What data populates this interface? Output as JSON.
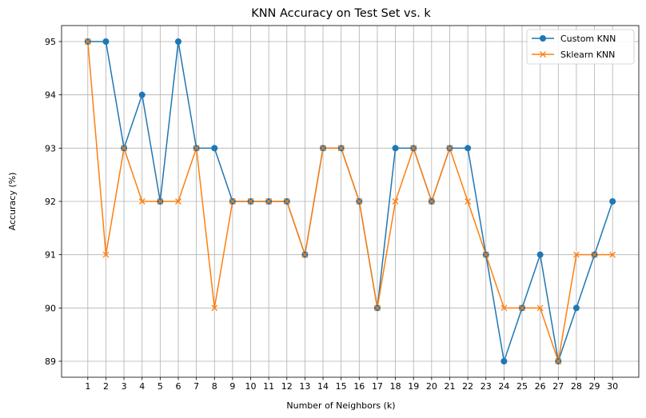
{
  "chart_data": {
    "type": "line",
    "title": "KNN Accuracy on Test Set vs. k",
    "xlabel": "Number of Neighbors (k)",
    "ylabel": "Accuracy (%)",
    "x": [
      1,
      2,
      3,
      4,
      5,
      6,
      7,
      8,
      9,
      10,
      11,
      12,
      13,
      14,
      15,
      16,
      17,
      18,
      19,
      20,
      21,
      22,
      23,
      24,
      25,
      26,
      27,
      28,
      29,
      30
    ],
    "xlim": [
      -0.45,
      31.45
    ],
    "ylim": [
      88.7,
      95.3
    ],
    "yticks": [
      89,
      90,
      91,
      92,
      93,
      94,
      95
    ],
    "grid": true,
    "legend_position": "top-right",
    "series": [
      {
        "name": "Custom KNN",
        "marker": "circle",
        "color": "#1f77b4",
        "values": [
          95,
          95,
          93,
          94,
          92,
          95,
          93,
          93,
          92,
          92,
          92,
          92,
          91,
          93,
          93,
          92,
          90,
          93,
          93,
          92,
          93,
          93,
          91,
          89,
          90,
          91,
          89,
          90,
          91,
          92
        ]
      },
      {
        "name": "Sklearn KNN",
        "marker": "x",
        "color": "#ff7f0e",
        "values": [
          95,
          91,
          93,
          92,
          92,
          92,
          93,
          90,
          92,
          92,
          92,
          92,
          91,
          93,
          93,
          92,
          90,
          92,
          93,
          92,
          93,
          92,
          91,
          90,
          90,
          90,
          89,
          91,
          91,
          91
        ]
      }
    ]
  }
}
